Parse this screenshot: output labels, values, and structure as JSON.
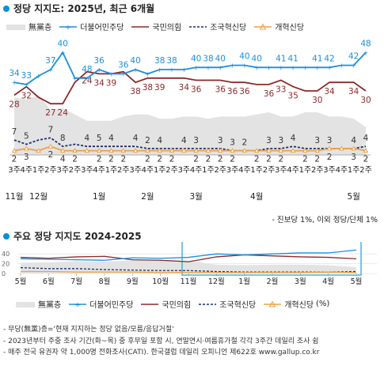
{
  "chart1_title": "정당 지지도: 2025년, 최근 6개월",
  "chart2_title": "주요 정당 지지도 2024-2025",
  "legend": {
    "none": "無黨층",
    "dp": "더불어민주당",
    "ppp": "국민의힘",
    "rebuild": "조국혁신당",
    "reform": "개혁신당",
    "unit": "(%)"
  },
  "colors": {
    "dp": "#1a8fde",
    "ppp": "#8b2a2a",
    "rebuild": "#1b2f6e",
    "reform": "#f0a040",
    "none": "#e3e3e3",
    "accent": "#0b8fd6"
  },
  "note_minor": "- 진보당 1%, 이외 정당/단체 1%",
  "footnotes": [
    "- 무당(無黨)층='현재 지지하는 정당 없음/모름/응답거절'",
    "- 2023년부터 주중 조사 기간(화~목) 중 후무일 포함 시, 연말연시·여름휴가철 각각 3주간 데일리 조사 쉼",
    "- 매주 전국 유권자 약 1,000명 전화조사(CATI). 한국갤럽 데일리 오피니언 제622호 www.gallup.co.kr"
  ],
  "chart_data": [
    {
      "type": "line",
      "title": "정당 지지도: 2025년, 최근 6개월",
      "x": [
        "3주",
        "4주",
        "1주",
        "2주",
        "3주",
        "2주",
        "3주",
        "4주",
        "1주",
        "2주",
        "3주",
        "4주",
        "1주",
        "2주",
        "3주",
        "4주",
        "1주",
        "2주",
        "3주",
        "4주",
        "1주",
        "2주",
        "3주",
        "4주",
        "1주",
        "2주",
        "3주",
        "4주",
        "1주",
        "2주"
      ],
      "month_labels": [
        {
          "label": "11월",
          "index": 0
        },
        {
          "label": "12월",
          "index": 2
        },
        {
          "label": "1월",
          "index": 7
        },
        {
          "label": "2월",
          "index": 11
        },
        {
          "label": "3월",
          "index": 15
        },
        {
          "label": "4월",
          "index": 20
        },
        {
          "label": "5월",
          "index": 28
        }
      ],
      "series": [
        {
          "name": "더불어민주당",
          "values": [
            34,
            33,
            37,
            40,
            48,
            36,
            36,
            40,
            38,
            38,
            40,
            38,
            40,
            40,
            40,
            41,
            41,
            41,
            42,
            42,
            41,
            41,
            41,
            41,
            41,
            41,
            41,
            42,
            42,
            48
          ]
        },
        {
          "name": "국민의힘",
          "values": [
            28,
            32,
            27,
            24,
            24,
            34,
            39,
            38,
            38,
            39,
            34,
            36,
            36,
            36,
            36,
            35,
            35,
            35,
            34,
            34,
            33,
            33,
            35,
            32,
            30,
            30,
            34,
            34,
            34,
            30
          ]
        },
        {
          "name": "조국혁신당",
          "values": [
            7,
            5,
            7,
            8,
            4,
            5,
            4,
            4,
            4,
            4,
            4,
            3,
            3,
            3,
            3,
            3,
            3,
            3,
            2,
            2,
            2,
            3,
            3,
            4,
            3,
            3,
            3,
            3,
            3,
            4
          ]
        },
        {
          "name": "개혁신당",
          "values": [
            2,
            3,
            2,
            4,
            2,
            2,
            2,
            2,
            2,
            2,
            2,
            2,
            2,
            2,
            2,
            2,
            2,
            2,
            2,
            2,
            2,
            2,
            2,
            2,
            2,
            2,
            3,
            3,
            3,
            2
          ]
        },
        {
          "name": "無黨층",
          "values": [
            27,
            26,
            28,
            21,
            22,
            19,
            16,
            16,
            16,
            18,
            19,
            19,
            17,
            17,
            18,
            18,
            17,
            18,
            18,
            18,
            19,
            20,
            18,
            18,
            20,
            20,
            18,
            18,
            17,
            13
          ]
        }
      ],
      "data_labels": {
        "dp": [
          34,
          33,
          37,
          40,
          48,
          36,
          36,
          40,
          38,
          38,
          40,
          38,
          40,
          40,
          40,
          41,
          41,
          41,
          42,
          42,
          48
        ],
        "ppp": [
          28,
          32,
          27,
          24,
          24,
          34,
          39,
          38,
          38,
          39,
          34,
          36,
          36,
          36,
          36,
          36,
          33,
          35,
          30,
          34,
          34,
          30
        ],
        "rebuild": [
          7,
          5,
          7,
          8,
          4,
          5,
          4,
          4,
          2,
          4,
          4,
          3,
          3,
          3,
          2,
          3,
          3,
          4,
          3,
          3,
          4,
          4
        ],
        "reform": [
          2,
          3,
          2,
          4,
          2,
          2,
          2,
          2,
          2,
          2,
          2,
          2,
          2,
          2,
          2,
          2,
          2,
          2,
          2,
          2,
          2,
          3,
          2
        ]
      },
      "ylim": [
        0,
        55
      ]
    },
    {
      "type": "line",
      "title": "주요 정당 지지도 2024-2025",
      "x": [
        "5월",
        "6월",
        "7월",
        "8월",
        "9월",
        "10월",
        "11월",
        "12월",
        "1월",
        "2월",
        "3월",
        "4월",
        "5월"
      ],
      "y_ticks": [
        0,
        20,
        40
      ],
      "series": [
        {
          "name": "더불어민주당",
          "values": [
            30,
            29,
            28,
            27,
            32,
            31,
            33,
            40,
            38,
            40,
            42,
            42,
            48
          ]
        },
        {
          "name": "국민의힘",
          "values": [
            33,
            31,
            34,
            35,
            28,
            27,
            24,
            34,
            38,
            36,
            34,
            33,
            30
          ]
        },
        {
          "name": "조국혁신당",
          "values": [
            12,
            10,
            10,
            8,
            7,
            6,
            6,
            4,
            3,
            3,
            3,
            3,
            4
          ]
        },
        {
          "name": "개혁신당",
          "values": [
            4,
            4,
            3,
            3,
            3,
            2,
            2,
            2,
            2,
            2,
            2,
            3,
            2
          ]
        },
        {
          "name": "無黨층",
          "values": [
            22,
            23,
            25,
            24,
            27,
            28,
            26,
            18,
            17,
            18,
            18,
            17,
            13
          ]
        }
      ],
      "ylim": [
        0,
        55
      ]
    }
  ]
}
